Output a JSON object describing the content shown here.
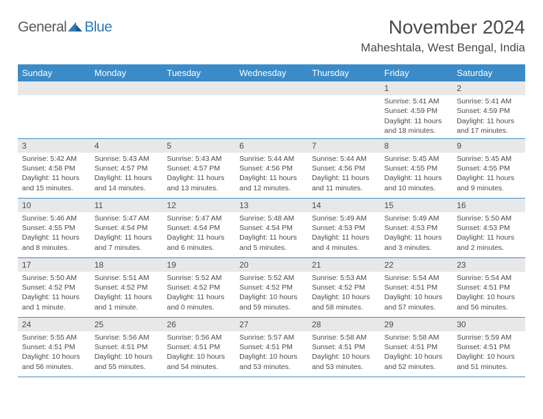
{
  "logo": {
    "text1": "General",
    "text2": "Blue"
  },
  "title": "November 2024",
  "location": "Maheshtala, West Bengal, India",
  "colors": {
    "header_bg": "#3b8bc8",
    "daynum_bg": "#e8e8e8",
    "row_border": "#3b8bc8",
    "text": "#4a4a4a",
    "logo_blue": "#2e7ab8"
  },
  "weekdays": [
    "Sunday",
    "Monday",
    "Tuesday",
    "Wednesday",
    "Thursday",
    "Friday",
    "Saturday"
  ],
  "weeks": [
    [
      null,
      null,
      null,
      null,
      null,
      {
        "d": "1",
        "sr": "5:41 AM",
        "ss": "4:59 PM",
        "dl": "11 hours and 18 minutes."
      },
      {
        "d": "2",
        "sr": "5:41 AM",
        "ss": "4:59 PM",
        "dl": "11 hours and 17 minutes."
      }
    ],
    [
      {
        "d": "3",
        "sr": "5:42 AM",
        "ss": "4:58 PM",
        "dl": "11 hours and 15 minutes."
      },
      {
        "d": "4",
        "sr": "5:43 AM",
        "ss": "4:57 PM",
        "dl": "11 hours and 14 minutes."
      },
      {
        "d": "5",
        "sr": "5:43 AM",
        "ss": "4:57 PM",
        "dl": "11 hours and 13 minutes."
      },
      {
        "d": "6",
        "sr": "5:44 AM",
        "ss": "4:56 PM",
        "dl": "11 hours and 12 minutes."
      },
      {
        "d": "7",
        "sr": "5:44 AM",
        "ss": "4:56 PM",
        "dl": "11 hours and 11 minutes."
      },
      {
        "d": "8",
        "sr": "5:45 AM",
        "ss": "4:55 PM",
        "dl": "11 hours and 10 minutes."
      },
      {
        "d": "9",
        "sr": "5:45 AM",
        "ss": "4:55 PM",
        "dl": "11 hours and 9 minutes."
      }
    ],
    [
      {
        "d": "10",
        "sr": "5:46 AM",
        "ss": "4:55 PM",
        "dl": "11 hours and 8 minutes."
      },
      {
        "d": "11",
        "sr": "5:47 AM",
        "ss": "4:54 PM",
        "dl": "11 hours and 7 minutes."
      },
      {
        "d": "12",
        "sr": "5:47 AM",
        "ss": "4:54 PM",
        "dl": "11 hours and 6 minutes."
      },
      {
        "d": "13",
        "sr": "5:48 AM",
        "ss": "4:54 PM",
        "dl": "11 hours and 5 minutes."
      },
      {
        "d": "14",
        "sr": "5:49 AM",
        "ss": "4:53 PM",
        "dl": "11 hours and 4 minutes."
      },
      {
        "d": "15",
        "sr": "5:49 AM",
        "ss": "4:53 PM",
        "dl": "11 hours and 3 minutes."
      },
      {
        "d": "16",
        "sr": "5:50 AM",
        "ss": "4:53 PM",
        "dl": "11 hours and 2 minutes."
      }
    ],
    [
      {
        "d": "17",
        "sr": "5:50 AM",
        "ss": "4:52 PM",
        "dl": "11 hours and 1 minute."
      },
      {
        "d": "18",
        "sr": "5:51 AM",
        "ss": "4:52 PM",
        "dl": "11 hours and 1 minute."
      },
      {
        "d": "19",
        "sr": "5:52 AM",
        "ss": "4:52 PM",
        "dl": "11 hours and 0 minutes."
      },
      {
        "d": "20",
        "sr": "5:52 AM",
        "ss": "4:52 PM",
        "dl": "10 hours and 59 minutes."
      },
      {
        "d": "21",
        "sr": "5:53 AM",
        "ss": "4:52 PM",
        "dl": "10 hours and 58 minutes."
      },
      {
        "d": "22",
        "sr": "5:54 AM",
        "ss": "4:51 PM",
        "dl": "10 hours and 57 minutes."
      },
      {
        "d": "23",
        "sr": "5:54 AM",
        "ss": "4:51 PM",
        "dl": "10 hours and 56 minutes."
      }
    ],
    [
      {
        "d": "24",
        "sr": "5:55 AM",
        "ss": "4:51 PM",
        "dl": "10 hours and 56 minutes."
      },
      {
        "d": "25",
        "sr": "5:56 AM",
        "ss": "4:51 PM",
        "dl": "10 hours and 55 minutes."
      },
      {
        "d": "26",
        "sr": "5:56 AM",
        "ss": "4:51 PM",
        "dl": "10 hours and 54 minutes."
      },
      {
        "d": "27",
        "sr": "5:57 AM",
        "ss": "4:51 PM",
        "dl": "10 hours and 53 minutes."
      },
      {
        "d": "28",
        "sr": "5:58 AM",
        "ss": "4:51 PM",
        "dl": "10 hours and 53 minutes."
      },
      {
        "d": "29",
        "sr": "5:58 AM",
        "ss": "4:51 PM",
        "dl": "10 hours and 52 minutes."
      },
      {
        "d": "30",
        "sr": "5:59 AM",
        "ss": "4:51 PM",
        "dl": "10 hours and 51 minutes."
      }
    ]
  ],
  "labels": {
    "sunrise": "Sunrise:",
    "sunset": "Sunset:",
    "daylight": "Daylight:"
  }
}
